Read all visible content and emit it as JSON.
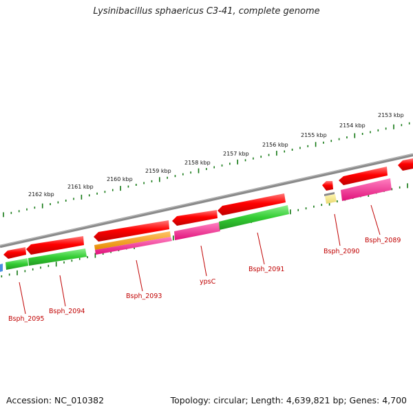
{
  "title": "Lysinibacillus sphaericus C3-41, complete genome",
  "footer": {
    "accession": "Accession: NC_010382",
    "summary": "Topology: circular; Length: 4,639,821 bp; Genes: 4,700"
  },
  "scale_labels": [
    "2162 kbp",
    "2161 kbp",
    "2160 kbp",
    "2159 kbp",
    "2158 kbp",
    "2157 kbp",
    "2156 kbp",
    "2155 kbp",
    "2154 kbp",
    "2153 kbp"
  ],
  "gene_labels": [
    "Bsph_2095",
    "Bsph_2094",
    "Bsph_2093",
    "ypsC",
    "Bsph_2091",
    "Bsph_2090",
    "Bsph_2089"
  ],
  "colors": {
    "cds": "#ff0000",
    "cog_green": "#33cc33",
    "cog_orange": "#ff9900",
    "cog_pink": "#ff1493",
    "cog_yellow": "#f0e68c",
    "backbone": "#808080",
    "tick": "#117711",
    "label": "#c00000"
  }
}
